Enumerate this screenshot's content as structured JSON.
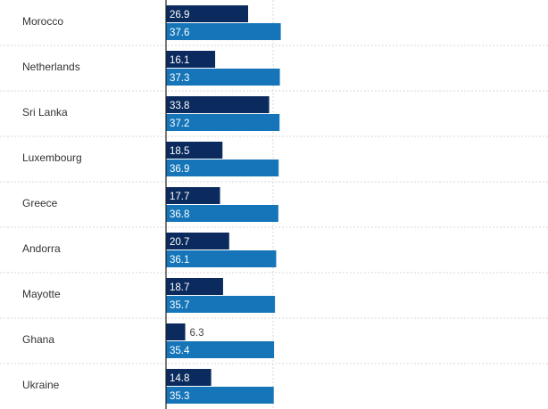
{
  "chart_data": {
    "type": "bar",
    "orientation": "horizontal",
    "grid": true,
    "categories": [
      "Morocco",
      "Netherlands",
      "Sri Lanka",
      "Luxembourg",
      "Greece",
      "Andorra",
      "Mayotte",
      "Ghana",
      "Ukraine"
    ],
    "series": [
      {
        "values": [
          26.9,
          16.1,
          33.8,
          18.5,
          17.7,
          20.7,
          18.7,
          6.3,
          14.8
        ]
      },
      {
        "values": [
          37.6,
          37.3,
          37.2,
          36.9,
          36.8,
          36.1,
          35.7,
          35.4,
          35.3
        ]
      }
    ],
    "colors": {
      "series1": "#0b2b5e",
      "series2": "#1575b8",
      "axis": "#222222",
      "grid": "#d7d7d7",
      "label_text": "#333333",
      "inside_label": "#ffffff",
      "outside_label": "#444444"
    }
  }
}
